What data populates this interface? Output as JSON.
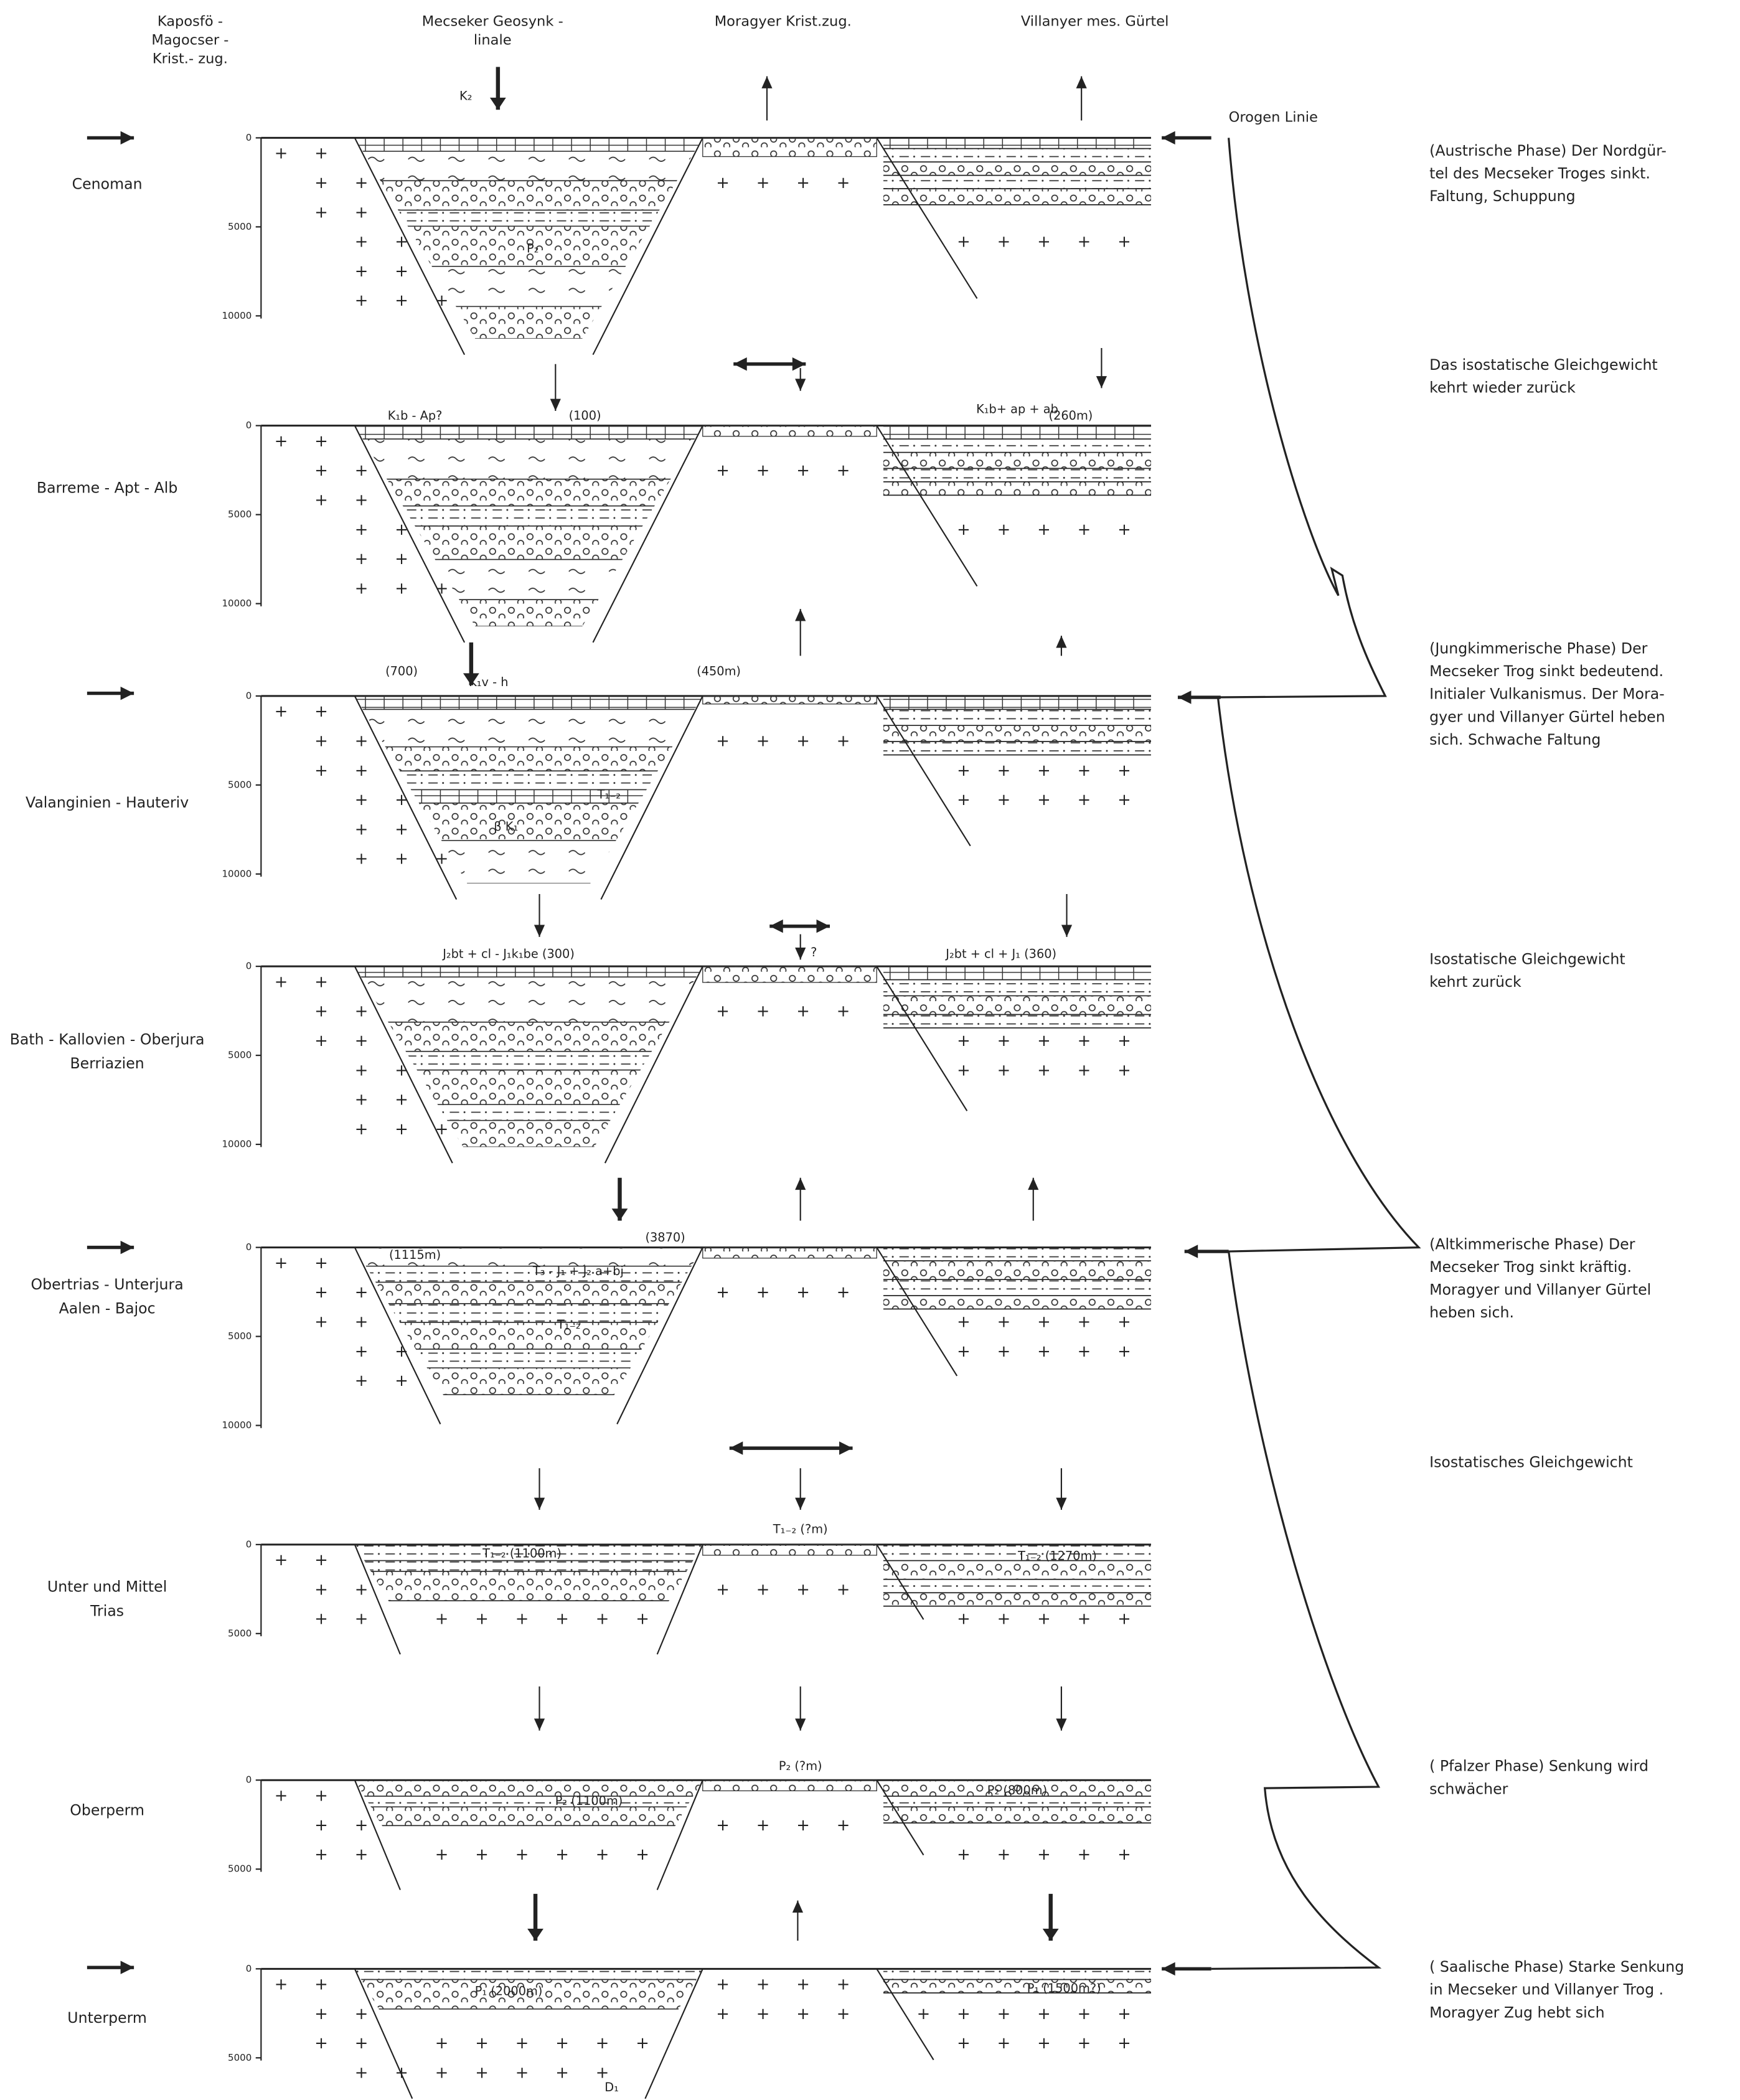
{
  "headers": [
    "Kaposfö - Magocser - Krist.- zug.",
    "Mecseker Geosynk - linale",
    "Moragyer Krist.zug.",
    "Villanyer mes. Gürtel"
  ],
  "orogen_line": "Orogen Linie",
  "panels": [
    {
      "stage": [
        "Cenoman"
      ],
      "depth_ticks": [
        0,
        5000,
        10000
      ],
      "annotations": [
        "K₂",
        "P₂"
      ]
    },
    {
      "stage": [
        "Barreme - Apt - Alb"
      ],
      "depth_ticks": [
        0,
        5000,
        10000
      ],
      "annotations": [
        "K₁b - Ap?",
        "(100)",
        "K₁b+ ap + ab",
        "(260m)"
      ]
    },
    {
      "stage": [
        "Valanginien - Hauteriv"
      ],
      "depth_ticks": [
        0,
        5000,
        10000
      ],
      "annotations": [
        "(700)",
        "K₁v - h",
        "(450m)",
        "T₁₋₂",
        "β K₁"
      ]
    },
    {
      "stage": [
        "Bath - Kallovien - Oberjura",
        "Berriazien"
      ],
      "depth_ticks": [
        0,
        5000,
        10000
      ],
      "annotations": [
        "J₂bt + cl - J₁k₁be (300)",
        "?",
        "J₂bt + cl + J₁ (360)"
      ]
    },
    {
      "stage": [
        "Obertrias - Unterjura",
        "Aalen - Bajoc"
      ],
      "depth_ticks": [
        0,
        5000,
        10000
      ],
      "annotations": [
        "(1115m)",
        "T₃ - J₁ + J₂ a+bj",
        "(3870)",
        "T₁₋₂"
      ]
    },
    {
      "stage": [
        "Unter und Mittel",
        "Trias"
      ],
      "depth_ticks": [
        0,
        5000
      ],
      "annotations": [
        "T₁₋₂ (1100m)",
        "T₁₋₂ (?m)",
        "T₁₋₂ (1270m)"
      ]
    },
    {
      "stage": [
        "Oberperm"
      ],
      "depth_ticks": [
        0,
        5000
      ],
      "annotations": [
        "P₂ (1100m)",
        "P₂ (?m)",
        "P₂ (800m)"
      ]
    },
    {
      "stage": [
        "Unterperm"
      ],
      "depth_ticks": [
        0,
        5000
      ],
      "annotations": [
        "P₁ (2000m)",
        "P₁ (1500m?)",
        "D₁"
      ]
    }
  ],
  "phases": [
    [
      "(Austrische Phase) Der Nordgür-",
      "tel des Mecseker Troges sinkt.",
      "Faltung, Schuppung"
    ],
    [
      "Das isostatische Gleichgewicht",
      "kehrt wieder zurück"
    ],
    [
      "(Jungkimmerische Phase) Der",
      "Mecseker Trog sinkt bedeutend.",
      "Initialer Vulkanismus. Der Mora-",
      "gyer und Villanyer Gürtel heben",
      "sich. Schwache Faltung"
    ],
    [
      "Isostatische Gleichgewicht",
      "kehrt zurück"
    ],
    [
      "(Altkimmerische Phase) Der",
      "Mecseker Trog sinkt kräftig.",
      "Moragyer und Villanyer Gürtel",
      "heben sich."
    ],
    [
      "Isostatisches Gleichgewicht"
    ],
    [
      "( Pfalzer Phase) Senkung wird",
      "schwächer"
    ],
    [
      "( Saalische Phase) Starke Senkung",
      "in Mecseker und Villanyer Trog .",
      "Moragyer Zug hebt sich"
    ]
  ]
}
